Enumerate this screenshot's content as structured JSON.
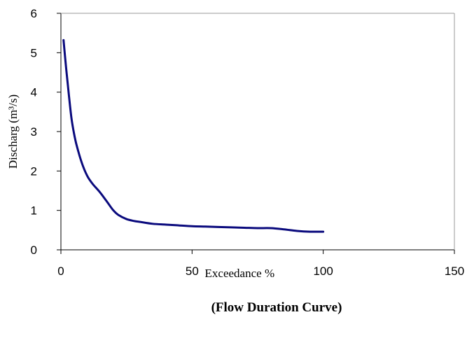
{
  "chart_data": {
    "type": "line",
    "title": "(Flow Duration Curve)",
    "xlabel": "Exceedance %",
    "ylabel": "Discharg (m³/s)",
    "xlim": [
      0,
      150
    ],
    "ylim": [
      0,
      6
    ],
    "xticks": [
      0,
      50,
      100,
      150
    ],
    "yticks": [
      0,
      1,
      2,
      3,
      4,
      5,
      6
    ],
    "grid": false,
    "series": [
      {
        "color": "#0a0a7d",
        "x": [
          1,
          2,
          3,
          4,
          5,
          6,
          8,
          10,
          12,
          15,
          18,
          20,
          22,
          25,
          28,
          30,
          35,
          40,
          45,
          50,
          55,
          60,
          65,
          70,
          75,
          80,
          85,
          90,
          95,
          100
        ],
        "y": [
          5.32,
          4.6,
          3.95,
          3.35,
          2.95,
          2.65,
          2.2,
          1.88,
          1.68,
          1.45,
          1.18,
          1.0,
          0.88,
          0.78,
          0.73,
          0.71,
          0.66,
          0.64,
          0.62,
          0.6,
          0.59,
          0.58,
          0.57,
          0.56,
          0.55,
          0.55,
          0.52,
          0.48,
          0.46,
          0.46
        ]
      }
    ]
  }
}
